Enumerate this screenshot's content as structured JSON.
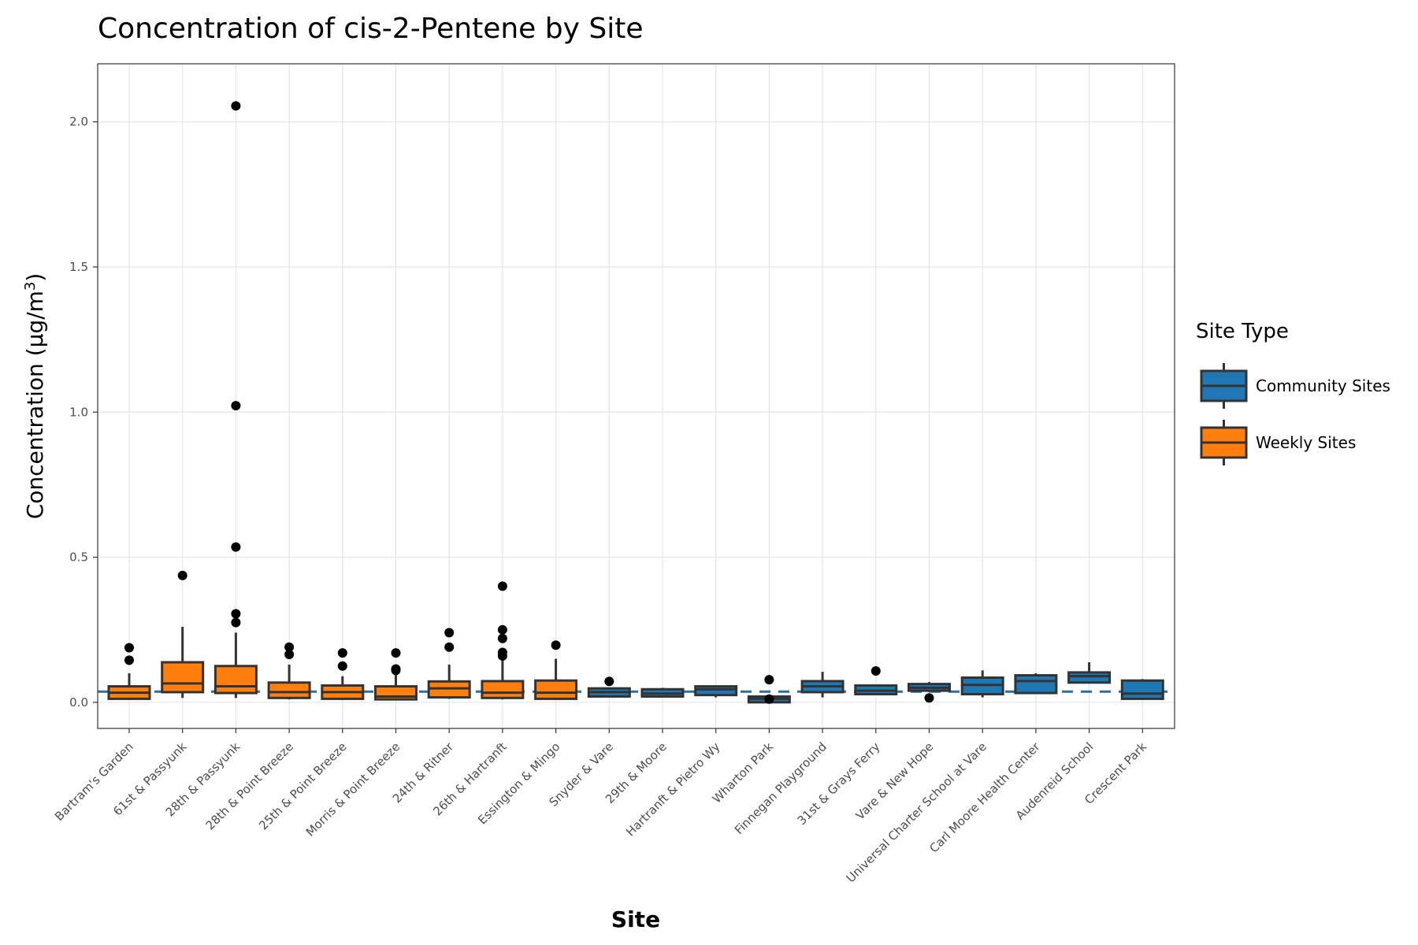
{
  "chart_data": {
    "type": "boxplot",
    "title": "Concentration of cis-2-Pentene by Site",
    "xlabel": "Site",
    "ylabel_main": "Concentration (μg/m",
    "ylabel_sup": "3",
    "ylabel_close": ")",
    "ylim": [
      -0.09,
      2.2
    ],
    "yticks": [
      0.0,
      0.5,
      1.0,
      1.5,
      2.0
    ],
    "ytick_labels": [
      "0.0",
      "0.5",
      "1.0",
      "1.5",
      "2.0"
    ],
    "reference_line": {
      "value": 0.037,
      "style": "dashed",
      "color": "#2b6f9e"
    },
    "grid": true,
    "legend": {
      "title": "Site Type",
      "position": "right",
      "items": [
        {
          "label": "Community Sites",
          "color": "#1f77b4"
        },
        {
          "label": "Weekly Sites",
          "color": "#ff7f0e"
        }
      ]
    },
    "categories": [
      "Bartram's Garden",
      "61st & Passyunk",
      "28th & Passyunk",
      "28th & Point Breeze",
      "25th & Point Breeze",
      "Morris & Point Breeze",
      "24th & Ritner",
      "26th & Hartranft",
      "Essington & Mingo",
      "Snyder & Vare",
      "29th & Moore",
      "Hartranft & Pietro Wy",
      "Wharton Park",
      "Finnegan Playground",
      "31st & Grays Ferry",
      "Vare & New Hope",
      "Universal Charter School at Vare",
      "Carl Moore Health Center",
      "Audenreid School",
      "Crescent Park"
    ],
    "boxes": [
      {
        "type": "Weekly Sites",
        "min": 0.01,
        "q1": 0.012,
        "median": 0.033,
        "q3": 0.055,
        "max": 0.1,
        "outliers": [
          0.145,
          0.188
        ]
      },
      {
        "type": "Weekly Sites",
        "min": 0.015,
        "q1": 0.035,
        "median": 0.065,
        "q3": 0.138,
        "max": 0.26,
        "outliers": [
          0.437
        ]
      },
      {
        "type": "Weekly Sites",
        "min": 0.015,
        "q1": 0.032,
        "median": 0.055,
        "q3": 0.125,
        "max": 0.24,
        "outliers": [
          0.275,
          0.305,
          0.535,
          1.022,
          2.055
        ]
      },
      {
        "type": "Weekly Sites",
        "min": 0.01,
        "q1": 0.015,
        "median": 0.035,
        "q3": 0.068,
        "max": 0.13,
        "outliers": [
          0.165,
          0.19
        ]
      },
      {
        "type": "Weekly Sites",
        "min": 0.01,
        "q1": 0.012,
        "median": 0.035,
        "q3": 0.058,
        "max": 0.09,
        "outliers": [
          0.125,
          0.17
        ]
      },
      {
        "type": "Weekly Sites",
        "min": 0.01,
        "q1": 0.01,
        "median": 0.02,
        "q3": 0.055,
        "max": 0.1,
        "outliers": [
          0.11,
          0.115,
          0.17
        ]
      },
      {
        "type": "Weekly Sites",
        "min": 0.012,
        "q1": 0.017,
        "median": 0.048,
        "q3": 0.072,
        "max": 0.13,
        "outliers": [
          0.19,
          0.24
        ]
      },
      {
        "type": "Weekly Sites",
        "min": 0.01,
        "q1": 0.015,
        "median": 0.033,
        "q3": 0.073,
        "max": 0.145,
        "outliers": [
          0.16,
          0.172,
          0.22,
          0.25,
          0.4
        ]
      },
      {
        "type": "Weekly Sites",
        "min": 0.01,
        "q1": 0.012,
        "median": 0.033,
        "q3": 0.075,
        "max": 0.15,
        "outliers": [
          0.197
        ]
      },
      {
        "type": "Community Sites",
        "min": 0.018,
        "q1": 0.02,
        "median": 0.035,
        "q3": 0.048,
        "max": 0.05,
        "outliers": [
          0.072
        ]
      },
      {
        "type": "Community Sites",
        "min": 0.02,
        "q1": 0.02,
        "median": 0.03,
        "q3": 0.045,
        "max": 0.05,
        "outliers": []
      },
      {
        "type": "Community Sites",
        "min": 0.017,
        "q1": 0.025,
        "median": 0.045,
        "q3": 0.055,
        "max": 0.055,
        "outliers": []
      },
      {
        "type": "Community Sites",
        "min": 0.0,
        "q1": 0.0,
        "median": 0.012,
        "q3": 0.02,
        "max": 0.02,
        "outliers": [
          0.011,
          0.078
        ]
      },
      {
        "type": "Community Sites",
        "min": 0.017,
        "q1": 0.035,
        "median": 0.055,
        "q3": 0.073,
        "max": 0.105,
        "outliers": []
      },
      {
        "type": "Community Sites",
        "min": 0.028,
        "q1": 0.028,
        "median": 0.04,
        "q3": 0.058,
        "max": 0.058,
        "outliers": [
          0.108
        ]
      },
      {
        "type": "Community Sites",
        "min": 0.035,
        "q1": 0.04,
        "median": 0.05,
        "q3": 0.063,
        "max": 0.07,
        "outliers": [
          0.015
        ]
      },
      {
        "type": "Community Sites",
        "min": 0.017,
        "q1": 0.028,
        "median": 0.06,
        "q3": 0.085,
        "max": 0.11,
        "outliers": []
      },
      {
        "type": "Community Sites",
        "min": 0.03,
        "q1": 0.032,
        "median": 0.073,
        "q3": 0.093,
        "max": 0.1,
        "outliers": []
      },
      {
        "type": "Community Sites",
        "min": 0.065,
        "q1": 0.068,
        "median": 0.09,
        "q3": 0.103,
        "max": 0.138,
        "outliers": []
      },
      {
        "type": "Community Sites",
        "min": 0.01,
        "q1": 0.012,
        "median": 0.03,
        "q3": 0.075,
        "max": 0.08,
        "outliers": []
      }
    ]
  }
}
